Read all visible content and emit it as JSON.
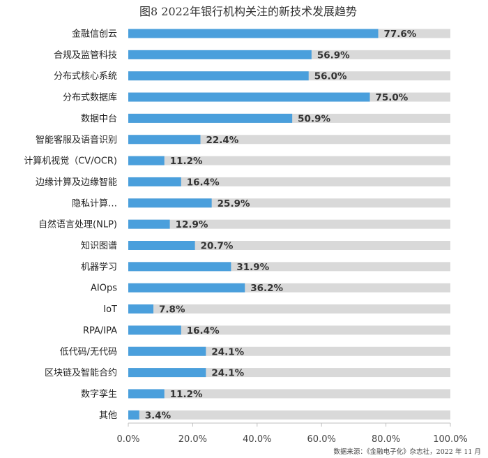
{
  "chart_data": {
    "type": "bar",
    "orientation": "horizontal",
    "title": "图8 2022年银行机构关注的新技术发展趋势",
    "categories": [
      "金融信创云",
      "合规及监管科技",
      "分布式核心系统",
      "分布式数据库",
      "数据中台",
      "智能客服及语音识别",
      "计算机视觉（CV/OCR)",
      "边缘计算及边缘智能",
      "隐私计算…",
      "自然语言处理(NLP)",
      "知识图谱",
      "机器学习",
      "AIOps",
      "IoT",
      "RPA/IPA",
      "低代码/无代码",
      "区块链及智能合约",
      "数字孪生",
      "其他"
    ],
    "values": [
      77.6,
      56.9,
      56.0,
      75.0,
      50.9,
      22.4,
      11.2,
      16.4,
      25.9,
      12.9,
      20.7,
      31.9,
      36.2,
      7.8,
      16.4,
      24.1,
      24.1,
      11.2,
      3.4
    ],
    "value_labels": [
      "77.6%",
      "56.9%",
      "56.0%",
      "75.0%",
      "50.9%",
      "22.4%",
      "11.2%",
      "16.4%",
      "25.9%",
      "12.9%",
      "20.7%",
      "31.9%",
      "36.2%",
      "7.8%",
      "16.4%",
      "24.1%",
      "24.1%",
      "11.2%",
      "3.4%"
    ],
    "xlim": [
      0,
      100
    ],
    "xticks": [
      0,
      20,
      40,
      60,
      80,
      100
    ],
    "xtick_labels": [
      "0.0%",
      "20.0%",
      "40.0%",
      "60.0%",
      "80.0%",
      "100.0%"
    ],
    "source": "数据来源：《金融电子化》杂志社，2022 年 11 月",
    "colors": {
      "bar": "#4a9fdc",
      "track": "#d9d9d9",
      "axis": "#bfbfbf"
    }
  }
}
